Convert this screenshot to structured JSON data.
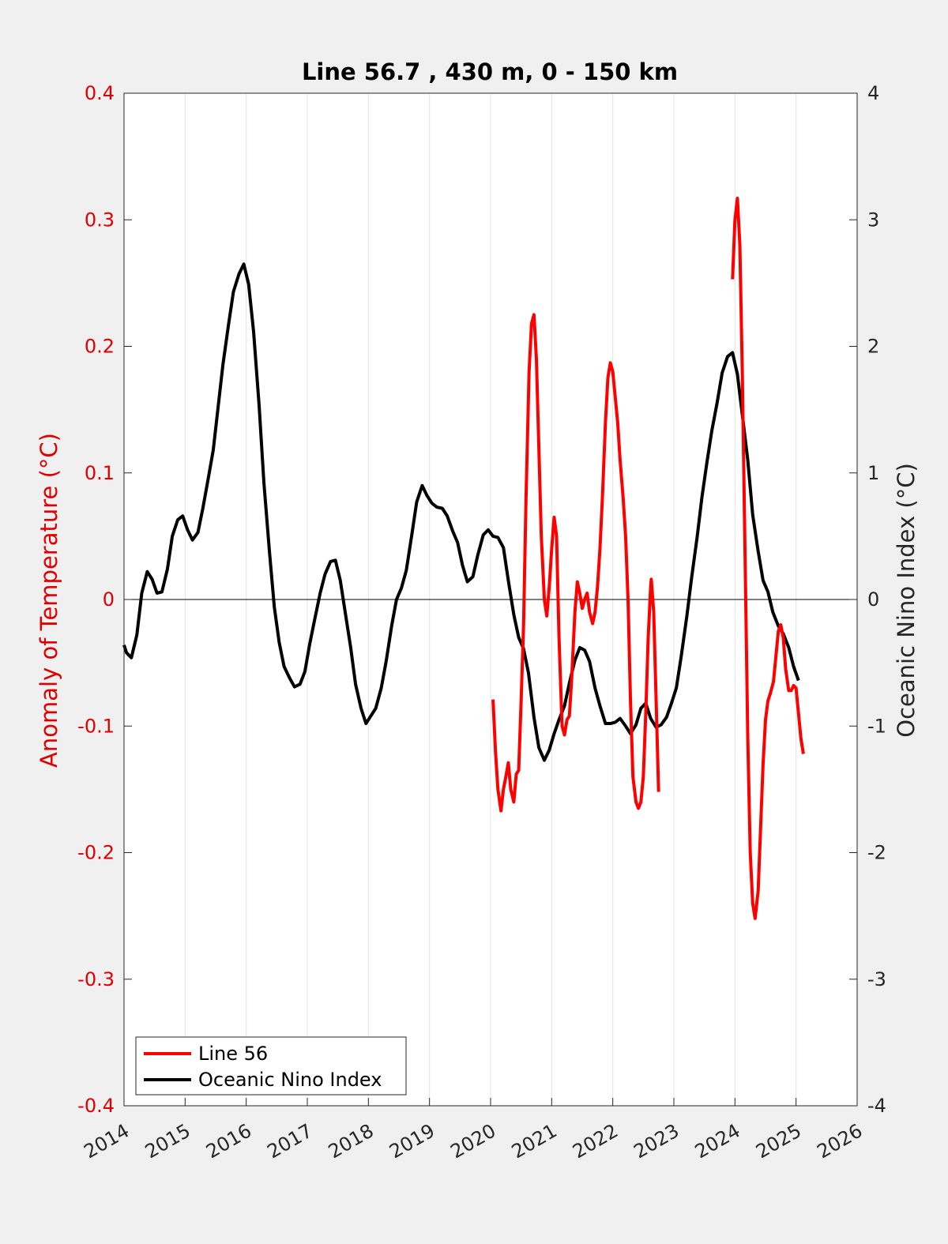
{
  "chart_data": {
    "type": "line",
    "title": "Line 56.7 , 430 m, 0 - 150 km",
    "ylabel_left": "Anomaly of Temperature (°C)",
    "ylabel_right": "Oceanic Nino Index (°C)",
    "xlabel": "",
    "xlim": [
      2014,
      2026
    ],
    "ylim_left": [
      -0.4,
      0.4
    ],
    "ylim_right": [
      -4,
      4
    ],
    "x_ticks": [
      "2014",
      "2015",
      "2016",
      "2017",
      "2018",
      "2019",
      "2020",
      "2021",
      "2022",
      "2023",
      "2024",
      "2025",
      "2026"
    ],
    "y_ticks_left": [
      "-0.4",
      "-0.3",
      "-0.2",
      "-0.1",
      "0",
      "0.1",
      "0.2",
      "0.3",
      "0.4"
    ],
    "y_ticks_right": [
      "-4",
      "-3",
      "-2",
      "-1",
      "0",
      "1",
      "2",
      "3",
      "4"
    ],
    "grid": "vertical",
    "legend_position": "bottom-left",
    "colors": {
      "line56": "#ff0000",
      "oni": "#000000",
      "left_axis": "#e00000",
      "right_axis": "#262626"
    },
    "series": [
      {
        "name": "Line 56",
        "axis": "left",
        "segments": [
          [
            [
              2020.04,
              -0.079
            ],
            [
              2020.08,
              -0.12
            ],
            [
              2020.12,
              -0.15
            ],
            [
              2020.17,
              -0.167
            ],
            [
              2020.21,
              -0.15
            ],
            [
              2020.25,
              -0.14
            ],
            [
              2020.29,
              -0.129
            ],
            [
              2020.33,
              -0.15
            ],
            [
              2020.38,
              -0.16
            ],
            [
              2020.42,
              -0.138
            ],
            [
              2020.46,
              -0.135
            ],
            [
              2020.5,
              -0.08
            ],
            [
              2020.54,
              -0.02
            ],
            [
              2020.58,
              0.08
            ],
            [
              2020.63,
              0.18
            ],
            [
              2020.67,
              0.218
            ],
            [
              2020.71,
              0.225
            ],
            [
              2020.75,
              0.19
            ],
            [
              2020.79,
              0.12
            ],
            [
              2020.83,
              0.05
            ],
            [
              2020.88,
              0.0
            ],
            [
              2020.92,
              -0.013
            ],
            [
              2020.96,
              0.01
            ],
            [
              2021.0,
              0.04
            ],
            [
              2021.04,
              0.065
            ],
            [
              2021.08,
              0.05
            ],
            [
              2021.12,
              -0.03
            ],
            [
              2021.17,
              -0.1
            ],
            [
              2021.21,
              -0.107
            ],
            [
              2021.25,
              -0.095
            ],
            [
              2021.29,
              -0.092
            ],
            [
              2021.33,
              -0.06
            ],
            [
              2021.38,
              -0.01
            ],
            [
              2021.42,
              0.014
            ],
            [
              2021.46,
              0.005
            ],
            [
              2021.5,
              -0.007
            ],
            [
              2021.54,
              0.0
            ],
            [
              2021.58,
              0.005
            ],
            [
              2021.62,
              -0.01
            ],
            [
              2021.67,
              -0.019
            ],
            [
              2021.71,
              -0.01
            ],
            [
              2021.75,
              0.01
            ],
            [
              2021.79,
              0.04
            ],
            [
              2021.83,
              0.08
            ],
            [
              2021.88,
              0.14
            ],
            [
              2021.92,
              0.175
            ],
            [
              2021.96,
              0.187
            ],
            [
              2022.0,
              0.18
            ],
            [
              2022.04,
              0.16
            ],
            [
              2022.08,
              0.14
            ],
            [
              2022.12,
              0.11
            ],
            [
              2022.17,
              0.08
            ],
            [
              2022.21,
              0.05
            ],
            [
              2022.25,
              0.0
            ],
            [
              2022.29,
              -0.08
            ],
            [
              2022.33,
              -0.14
            ],
            [
              2022.38,
              -0.16
            ],
            [
              2022.42,
              -0.165
            ],
            [
              2022.46,
              -0.16
            ],
            [
              2022.5,
              -0.14
            ],
            [
              2022.54,
              -0.09
            ],
            [
              2022.58,
              -0.03
            ],
            [
              2022.62,
              0.01
            ],
            [
              2022.63,
              0.016
            ],
            [
              2022.67,
              -0.01
            ],
            [
              2022.71,
              -0.08
            ],
            [
              2022.75,
              -0.152
            ]
          ],
          [
            [
              2023.96,
              0.253
            ],
            [
              2024.0,
              0.3
            ],
            [
              2024.04,
              0.317
            ],
            [
              2024.08,
              0.28
            ],
            [
              2024.12,
              0.18
            ],
            [
              2024.17,
              0.02
            ],
            [
              2024.21,
              -0.11
            ],
            [
              2024.25,
              -0.2
            ],
            [
              2024.29,
              -0.24
            ],
            [
              2024.33,
              -0.252
            ],
            [
              2024.38,
              -0.23
            ],
            [
              2024.42,
              -0.18
            ],
            [
              2024.46,
              -0.13
            ],
            [
              2024.5,
              -0.095
            ],
            [
              2024.54,
              -0.08
            ],
            [
              2024.58,
              -0.074
            ],
            [
              2024.63,
              -0.065
            ],
            [
              2024.67,
              -0.045
            ],
            [
              2024.71,
              -0.025
            ],
            [
              2024.75,
              -0.02
            ],
            [
              2024.79,
              -0.03
            ],
            [
              2024.83,
              -0.055
            ],
            [
              2024.88,
              -0.072
            ],
            [
              2024.92,
              -0.072
            ],
            [
              2024.96,
              -0.068
            ],
            [
              2025.0,
              -0.07
            ],
            [
              2025.04,
              -0.09
            ],
            [
              2025.08,
              -0.11
            ],
            [
              2025.12,
              -0.122
            ]
          ]
        ]
      },
      {
        "name": "Oceanic Nino Index",
        "axis": "right",
        "segments": [
          [
            [
              2014.0,
              -0.36
            ],
            [
              2014.04,
              -0.42
            ],
            [
              2014.12,
              -0.46
            ],
            [
              2014.21,
              -0.28
            ],
            [
              2014.29,
              0.05
            ],
            [
              2014.38,
              0.22
            ],
            [
              2014.46,
              0.16
            ],
            [
              2014.54,
              0.05
            ],
            [
              2014.62,
              0.06
            ],
            [
              2014.71,
              0.24
            ],
            [
              2014.79,
              0.5
            ],
            [
              2014.88,
              0.63
            ],
            [
              2014.96,
              0.66
            ],
            [
              2015.04,
              0.55
            ],
            [
              2015.12,
              0.47
            ],
            [
              2015.21,
              0.53
            ],
            [
              2015.29,
              0.72
            ],
            [
              2015.38,
              0.96
            ],
            [
              2015.46,
              1.18
            ],
            [
              2015.54,
              1.52
            ],
            [
              2015.62,
              1.86
            ],
            [
              2015.71,
              2.17
            ],
            [
              2015.79,
              2.43
            ],
            [
              2015.88,
              2.57
            ],
            [
              2015.96,
              2.65
            ],
            [
              2016.04,
              2.49
            ],
            [
              2016.12,
              2.12
            ],
            [
              2016.21,
              1.54
            ],
            [
              2016.29,
              0.92
            ],
            [
              2016.38,
              0.38
            ],
            [
              2016.46,
              -0.06
            ],
            [
              2016.54,
              -0.34
            ],
            [
              2016.62,
              -0.53
            ],
            [
              2016.71,
              -0.62
            ],
            [
              2016.79,
              -0.69
            ],
            [
              2016.88,
              -0.67
            ],
            [
              2016.96,
              -0.57
            ],
            [
              2017.04,
              -0.35
            ],
            [
              2017.12,
              -0.16
            ],
            [
              2017.21,
              0.05
            ],
            [
              2017.29,
              0.2
            ],
            [
              2017.38,
              0.3
            ],
            [
              2017.46,
              0.31
            ],
            [
              2017.54,
              0.15
            ],
            [
              2017.62,
              -0.1
            ],
            [
              2017.71,
              -0.38
            ],
            [
              2017.79,
              -0.67
            ],
            [
              2017.88,
              -0.86
            ],
            [
              2017.96,
              -0.98
            ],
            [
              2018.04,
              -0.92
            ],
            [
              2018.12,
              -0.86
            ],
            [
              2018.21,
              -0.7
            ],
            [
              2018.29,
              -0.49
            ],
            [
              2018.38,
              -0.21
            ],
            [
              2018.46,
              0.0
            ],
            [
              2018.54,
              0.09
            ],
            [
              2018.62,
              0.23
            ],
            [
              2018.71,
              0.51
            ],
            [
              2018.79,
              0.77
            ],
            [
              2018.88,
              0.9
            ],
            [
              2018.96,
              0.82
            ],
            [
              2019.04,
              0.76
            ],
            [
              2019.12,
              0.73
            ],
            [
              2019.21,
              0.72
            ],
            [
              2019.29,
              0.66
            ],
            [
              2019.38,
              0.54
            ],
            [
              2019.46,
              0.45
            ],
            [
              2019.54,
              0.27
            ],
            [
              2019.62,
              0.14
            ],
            [
              2019.71,
              0.18
            ],
            [
              2019.79,
              0.35
            ],
            [
              2019.88,
              0.51
            ],
            [
              2019.96,
              0.55
            ],
            [
              2020.04,
              0.5
            ],
            [
              2020.12,
              0.49
            ],
            [
              2020.21,
              0.41
            ],
            [
              2020.29,
              0.15
            ],
            [
              2020.38,
              -0.12
            ],
            [
              2020.46,
              -0.3
            ],
            [
              2020.54,
              -0.39
            ],
            [
              2020.62,
              -0.58
            ],
            [
              2020.71,
              -0.93
            ],
            [
              2020.79,
              -1.17
            ],
            [
              2020.88,
              -1.27
            ],
            [
              2020.96,
              -1.19
            ],
            [
              2021.04,
              -1.06
            ],
            [
              2021.12,
              -0.95
            ],
            [
              2021.21,
              -0.84
            ],
            [
              2021.29,
              -0.66
            ],
            [
              2021.38,
              -0.48
            ],
            [
              2021.46,
              -0.38
            ],
            [
              2021.54,
              -0.4
            ],
            [
              2021.62,
              -0.49
            ],
            [
              2021.71,
              -0.7
            ],
            [
              2021.79,
              -0.84
            ],
            [
              2021.88,
              -0.98
            ],
            [
              2021.96,
              -0.98
            ],
            [
              2022.04,
              -0.97
            ],
            [
              2022.12,
              -0.94
            ],
            [
              2022.21,
              -1.0
            ],
            [
              2022.29,
              -1.06
            ],
            [
              2022.38,
              -0.99
            ],
            [
              2022.46,
              -0.86
            ],
            [
              2022.54,
              -0.82
            ],
            [
              2022.62,
              -0.94
            ],
            [
              2022.71,
              -1.01
            ],
            [
              2022.79,
              -0.99
            ],
            [
              2022.88,
              -0.93
            ],
            [
              2022.96,
              -0.82
            ],
            [
              2023.04,
              -0.7
            ],
            [
              2023.12,
              -0.45
            ],
            [
              2023.21,
              -0.14
            ],
            [
              2023.29,
              0.17
            ],
            [
              2023.38,
              0.49
            ],
            [
              2023.46,
              0.81
            ],
            [
              2023.54,
              1.08
            ],
            [
              2023.62,
              1.33
            ],
            [
              2023.71,
              1.56
            ],
            [
              2023.79,
              1.79
            ],
            [
              2023.88,
              1.92
            ],
            [
              2023.96,
              1.95
            ],
            [
              2024.04,
              1.78
            ],
            [
              2024.12,
              1.46
            ],
            [
              2024.21,
              1.1
            ],
            [
              2024.29,
              0.67
            ],
            [
              2024.38,
              0.38
            ],
            [
              2024.46,
              0.15
            ],
            [
              2024.54,
              0.06
            ],
            [
              2024.62,
              -0.1
            ],
            [
              2024.71,
              -0.21
            ],
            [
              2024.79,
              -0.27
            ],
            [
              2024.88,
              -0.38
            ],
            [
              2024.96,
              -0.53
            ],
            [
              2025.04,
              -0.64
            ]
          ]
        ]
      }
    ]
  }
}
